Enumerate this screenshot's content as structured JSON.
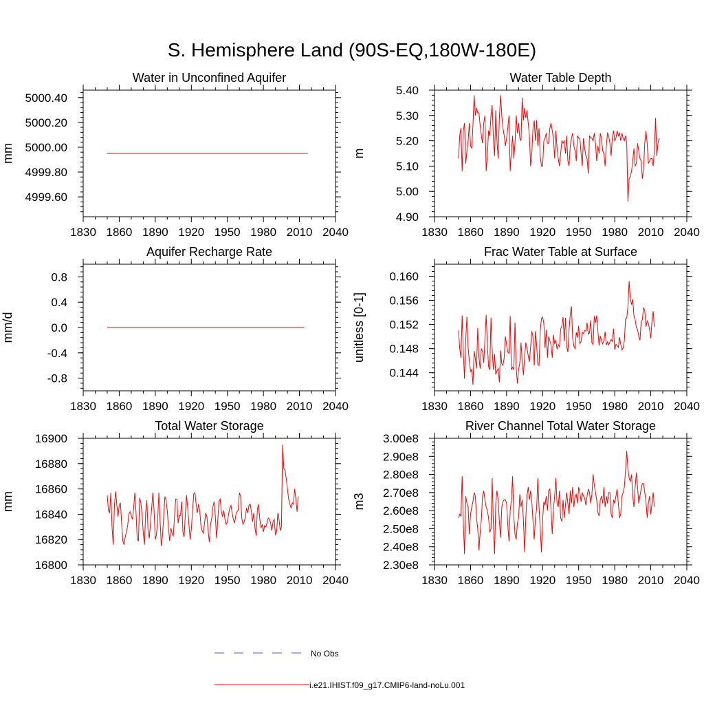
{
  "page": {
    "title": "S. Hemisphere Land (90S-EQ,180W-180E)"
  },
  "legend": {
    "obs_label": "No Obs",
    "model_label": "i.e21.IHIST.f09_g17.CMIP6-land-noLu.001",
    "obs_color": "#4b57c8",
    "model_color": "#ff0000"
  },
  "chart_data": [
    {
      "id": "aquifer",
      "type": "line",
      "title": "Water in Unconfined Aquifer",
      "ylabel": "mm",
      "xlim": [
        1830,
        2040
      ],
      "ylim": [
        4999.44,
        5000.46
      ],
      "xticks": [
        1830,
        1860,
        1890,
        1920,
        1950,
        1980,
        2010,
        2040
      ],
      "yticks": [
        4999.6,
        4999.8,
        5000.0,
        5000.2,
        5000.4
      ],
      "ytick_labels": [
        "4999.60",
        "4999.80",
        "5000.00",
        "5000.20",
        "5000.40"
      ],
      "x_start": 1850,
      "values": [
        4999.95,
        4999.95,
        4999.95,
        4999.95,
        4999.95,
        4999.95,
        4999.95,
        4999.95,
        4999.95,
        4999.95,
        4999.95,
        4999.95,
        4999.95,
        4999.95,
        4999.95,
        4999.95,
        4999.95,
        4999.95,
        4999.95,
        4999.95,
        4999.95,
        4999.95,
        4999.95,
        4999.95,
        4999.95,
        4999.95,
        4999.95,
        4999.95,
        4999.95,
        4999.95,
        4999.95,
        4999.95,
        4999.95,
        4999.95,
        4999.95,
        4999.95,
        4999.95,
        4999.95,
        4999.95,
        4999.95,
        4999.95,
        4999.95,
        4999.95,
        4999.95,
        4999.95,
        4999.95,
        4999.95,
        4999.95,
        4999.95,
        4999.95,
        4999.95,
        4999.95,
        4999.95,
        4999.95,
        4999.95,
        4999.95,
        4999.95,
        4999.95,
        4999.95,
        4999.95,
        4999.95,
        4999.95,
        4999.95,
        4999.95,
        4999.95,
        4999.95,
        4999.95,
        4999.95,
        4999.95,
        4999.95,
        4999.95,
        4999.95,
        4999.95,
        4999.95,
        4999.95,
        4999.95,
        4999.95,
        4999.95,
        4999.95,
        4999.95,
        4999.95,
        4999.95,
        4999.95,
        4999.95,
        4999.95,
        4999.95,
        4999.95,
        4999.95,
        4999.95,
        4999.95,
        4999.95,
        4999.95,
        4999.95,
        4999.95,
        4999.95,
        4999.95,
        4999.95,
        4999.95,
        4999.95,
        4999.95,
        4999.95,
        4999.95,
        4999.95,
        4999.95,
        4999.95,
        4999.95,
        4999.95,
        4999.95,
        4999.95,
        4999.95,
        4999.95,
        4999.95,
        4999.95,
        4999.95,
        4999.95,
        4999.95,
        4999.95,
        4999.95,
        4999.95,
        4999.95,
        4999.95,
        4999.95,
        4999.95,
        4999.95,
        4999.95,
        4999.95,
        4999.95,
        4999.95,
        4999.95,
        4999.95,
        4999.95,
        4999.95,
        4999.95,
        4999.95,
        4999.95,
        4999.95,
        4999.95,
        4999.95,
        4999.95,
        4999.95,
        4999.95,
        4999.95,
        4999.95,
        4999.95,
        4999.95,
        4999.95,
        4999.95,
        4999.95,
        4999.95,
        4999.95,
        4999.95,
        4999.95,
        4999.95,
        4999.95,
        4999.95,
        4999.95,
        4999.95,
        4999.95,
        4999.95,
        4999.95,
        4999.95,
        4999.95,
        4999.95,
        4999.95,
        4999.95,
        4999.95,
        4999.95,
        4999.95
      ]
    },
    {
      "id": "wtd",
      "type": "line",
      "title": "Water Table Depth",
      "ylabel": "m",
      "xlim": [
        1830,
        2040
      ],
      "ylim": [
        4.9,
        5.4
      ],
      "xticks": [
        1830,
        1860,
        1890,
        1920,
        1950,
        1980,
        2010,
        2040
      ],
      "yticks": [
        4.9,
        5.0,
        5.1,
        5.2,
        5.3,
        5.4
      ],
      "ytick_labels": [
        "4.90",
        "5.00",
        "5.10",
        "5.20",
        "5.30",
        "5.40"
      ],
      "x_start": 1850,
      "values": [
        5.13,
        5.22,
        5.25,
        5.08,
        5.24,
        5.27,
        5.11,
        5.16,
        5.2,
        5.27,
        5.18,
        5.17,
        5.26,
        5.38,
        5.3,
        5.33,
        5.31,
        5.31,
        5.26,
        5.22,
        5.19,
        5.27,
        5.3,
        5.08,
        5.14,
        5.24,
        5.22,
        5.3,
        5.34,
        5.21,
        5.14,
        5.32,
        5.2,
        5.13,
        5.29,
        5.38,
        5.3,
        5.25,
        5.22,
        5.18,
        5.21,
        5.25,
        5.3,
        5.08,
        5.16,
        5.22,
        5.13,
        5.19,
        5.3,
        5.23,
        5.27,
        5.21,
        5.2,
        5.37,
        5.28,
        5.33,
        5.29,
        5.32,
        5.27,
        5.22,
        5.1,
        5.15,
        5.25,
        5.28,
        5.2,
        5.28,
        5.18,
        5.25,
        5.14,
        5.1,
        5.1,
        5.2,
        5.21,
        5.23,
        5.19,
        5.19,
        5.25,
        5.27,
        5.24,
        5.21,
        5.13,
        5.24,
        5.17,
        5.13,
        5.1,
        5.15,
        5.2,
        5.19,
        5.2,
        5.15,
        5.22,
        5.12,
        5.1,
        5.18,
        5.21,
        5.23,
        5.18,
        5.16,
        5.12,
        5.22,
        5.21,
        5.21,
        5.15,
        5.1,
        5.21,
        5.17,
        5.14,
        5.13,
        5.07,
        5.22,
        5.21,
        5.21,
        5.2,
        5.23,
        5.19,
        5.12,
        5.18,
        5.15,
        5.23,
        5.21,
        5.16,
        5.15,
        5.1,
        5.18,
        5.23,
        5.22,
        5.19,
        5.14,
        5.21,
        5.24,
        5.2,
        5.21,
        5.24,
        5.22,
        5.23,
        5.2,
        5.23,
        5.21,
        5.2,
        5.22,
        5.19,
        4.96,
        5.05,
        5.06,
        5.08,
        5.12,
        5.17,
        5.1,
        5.11,
        5.19,
        5.16,
        5.13,
        5.12,
        5.05,
        5.09,
        5.19,
        5.24,
        5.19,
        5.11,
        5.12,
        5.13,
        5.13,
        5.1,
        5.16,
        5.29,
        5.14,
        5.19,
        5.21
      ]
    },
    {
      "id": "recharge",
      "type": "line",
      "title": "Aquifer Recharge Rate",
      "ylabel": "mm/d",
      "xlim": [
        1830,
        2040
      ],
      "ylim": [
        -1.0,
        1.0
      ],
      "xticks": [
        1830,
        1860,
        1890,
        1920,
        1950,
        1980,
        2010,
        2040
      ],
      "yticks": [
        -0.8,
        -0.4,
        0.0,
        0.4,
        0.8
      ],
      "ytick_labels": [
        "-0.8",
        "-0.4",
        "0.0",
        "0.4",
        "0.8"
      ],
      "x_start": 1850,
      "values": [
        0.0,
        0.0,
        0.0,
        0.0,
        0.0,
        0.0,
        0.0,
        0.0,
        0.0,
        0.0,
        0.0,
        0.0,
        0.0,
        0.0,
        0.0,
        0.0,
        0.0,
        0.0,
        0.0,
        0.0,
        0.0,
        0.0,
        0.0,
        0.0,
        0.0,
        0.0,
        0.0,
        0.0,
        0.0,
        0.0,
        0.0,
        0.0,
        0.0,
        0.0,
        0.0,
        0.0,
        0.0,
        0.0,
        0.0,
        0.0,
        0.0,
        0.0,
        0.0,
        0.0,
        0.0,
        0.0,
        0.0,
        0.0,
        0.0,
        0.0,
        0.0,
        0.0,
        0.0,
        0.0,
        0.0,
        0.0,
        0.0,
        0.0,
        0.0,
        0.0,
        0.0,
        0.0,
        0.0,
        0.0,
        0.0,
        0.0,
        0.0,
        0.0,
        0.0,
        0.0,
        0.0,
        0.0,
        0.0,
        0.0,
        0.0,
        0.0,
        0.0,
        0.0,
        0.0,
        0.0,
        0.0,
        0.0,
        0.0,
        0.0,
        0.0,
        0.0,
        0.0,
        0.0,
        0.0,
        0.0,
        0.0,
        0.0,
        0.0,
        0.0,
        0.0,
        0.0,
        0.0,
        0.0,
        0.0,
        0.0,
        0.0,
        0.0,
        0.0,
        0.0,
        0.0,
        0.0,
        0.0,
        0.0,
        0.0,
        0.0,
        0.0,
        0.0,
        0.0,
        0.0,
        0.0,
        0.0,
        0.0,
        0.0,
        0.0,
        0.0,
        0.0,
        0.0,
        0.0,
        0.0,
        0.0,
        0.0,
        0.0,
        0.0,
        0.0,
        0.0,
        0.0,
        0.0,
        0.0,
        0.0,
        0.0,
        0.0,
        0.0,
        0.0,
        0.0,
        0.0,
        0.0,
        0.0,
        0.0,
        0.0,
        0.0,
        0.0,
        0.0,
        0.0,
        0.0,
        0.0,
        0.0,
        0.0,
        0.0,
        0.0,
        0.0,
        0.0,
        0.0,
        0.0,
        0.0,
        0.0,
        0.0,
        0.0,
        0.0,
        0.0,
        0.0
      ]
    },
    {
      "id": "fwt",
      "type": "line",
      "title": "Frac Water Table at Surface",
      "ylabel": "unitless [0-1]",
      "xlim": [
        1830,
        2040
      ],
      "ylim": [
        0.141,
        0.162
      ],
      "xticks": [
        1830,
        1860,
        1890,
        1920,
        1950,
        1980,
        2010,
        2040
      ],
      "yticks": [
        0.144,
        0.148,
        0.152,
        0.156,
        0.16
      ],
      "ytick_labels": [
        "0.144",
        "0.148",
        "0.152",
        "0.156",
        "0.160"
      ],
      "x_start": 1850,
      "values": [
        0.151,
        0.148,
        0.1465,
        0.1535,
        0.1473,
        0.143,
        0.1495,
        0.1533,
        0.1481,
        0.146,
        0.1442,
        0.1445,
        0.142,
        0.1476,
        0.1463,
        0.1447,
        0.1514,
        0.1465,
        0.1447,
        0.148,
        0.1475,
        0.1456,
        0.1496,
        0.1536,
        0.1487,
        0.145,
        0.1445,
        0.1531,
        0.1478,
        0.1445,
        0.1471,
        0.1437,
        0.1443,
        0.1447,
        0.1424,
        0.1477,
        0.1455,
        0.1452,
        0.1465,
        0.15,
        0.1487,
        0.1474,
        0.1472,
        0.1534,
        0.1445,
        0.1449,
        0.1445,
        0.1523,
        0.1447,
        0.1422,
        0.1445,
        0.1456,
        0.149,
        0.1459,
        0.1436,
        0.1465,
        0.149,
        0.1481,
        0.1468,
        0.1458,
        0.1483,
        0.1509,
        0.1499,
        0.1452,
        0.1509,
        0.1486,
        0.1453,
        0.1452,
        0.1509,
        0.153,
        0.1532,
        0.1522,
        0.1481,
        0.1511,
        0.1465,
        0.15,
        0.1493,
        0.1486,
        0.1465,
        0.1503,
        0.1488,
        0.1494,
        0.1479,
        0.1487,
        0.1483,
        0.1512,
        0.1518,
        0.1532,
        0.1492,
        0.1531,
        0.1484,
        0.1474,
        0.1511,
        0.1537,
        0.155,
        0.1497,
        0.1484,
        0.148,
        0.1507,
        0.1498,
        0.1518,
        0.1488,
        0.1492,
        0.1507,
        0.1505,
        0.151,
        0.1509,
        0.1523,
        0.1504,
        0.1506,
        0.1527,
        0.149,
        0.1487,
        0.1534,
        0.1523,
        0.1535,
        0.1509,
        0.1485,
        0.1501,
        0.1493,
        0.1488,
        0.1494,
        0.1508,
        0.1486,
        0.1491,
        0.1486,
        0.1491,
        0.1495,
        0.1492,
        0.1513,
        0.1478,
        0.1487,
        0.1485,
        0.1482,
        0.1499,
        0.1487,
        0.1478,
        0.1481,
        0.1493,
        0.1529,
        0.153,
        0.155,
        0.1592,
        0.1562,
        0.1553,
        0.1562,
        0.1534,
        0.1528,
        0.1515,
        0.1512,
        0.15,
        0.1494,
        0.1524,
        0.1528,
        0.1548,
        0.1543,
        0.1516,
        0.1526,
        0.1522,
        0.1512,
        0.1497,
        0.1526,
        0.1542,
        0.1516
      ]
    },
    {
      "id": "tws",
      "type": "line",
      "title": "Total Water Storage",
      "ylabel": "mm",
      "xlim": [
        1830,
        2040
      ],
      "ylim": [
        16800,
        16900
      ],
      "xticks": [
        1830,
        1860,
        1890,
        1920,
        1950,
        1980,
        2010,
        2040
      ],
      "yticks": [
        16800,
        16820,
        16840,
        16860,
        16880,
        16900
      ],
      "ytick_labels": [
        "16800",
        "16820",
        "16840",
        "16860",
        "16880",
        "16900"
      ],
      "x_start": 1850,
      "values": [
        16855,
        16843,
        16841,
        16857,
        16830,
        16816,
        16847,
        16858,
        16847,
        16838,
        16847,
        16849,
        16833,
        16819,
        16816,
        16822,
        16826,
        16831,
        16840,
        16842,
        16839,
        16836,
        16845,
        16857,
        16841,
        16820,
        16819,
        16853,
        16849,
        16840,
        16825,
        16816,
        16841,
        16851,
        16827,
        16821,
        16833,
        16845,
        16857,
        16843,
        16820,
        16824,
        16836,
        16857,
        16835,
        16815,
        16823,
        16838,
        16854,
        16851,
        16843,
        16829,
        16819,
        16829,
        16825,
        16823,
        16838,
        16852,
        16852,
        16833,
        16839,
        16839,
        16850,
        16826,
        16822,
        16840,
        16855,
        16845,
        16832,
        16820,
        16828,
        16842,
        16856,
        16857,
        16848,
        16841,
        16848,
        16843,
        16831,
        16827,
        16825,
        16833,
        16841,
        16838,
        16827,
        16818,
        16832,
        16837,
        16846,
        16850,
        16838,
        16821,
        16835,
        16850,
        16852,
        16842,
        16838,
        16843,
        16836,
        16832,
        16834,
        16840,
        16845,
        16847,
        16841,
        16836,
        16833,
        16839,
        16842,
        16843,
        16857,
        16854,
        16837,
        16832,
        16834,
        16838,
        16845,
        16841,
        16847,
        16848,
        16842,
        16834,
        16841,
        16829,
        16823,
        16844,
        16848,
        16836,
        16829,
        16832,
        16826,
        16831,
        16830,
        16833,
        16837,
        16836,
        16833,
        16827,
        16834,
        16836,
        16824,
        16826,
        16841,
        16836,
        16827,
        16830,
        16895,
        16876,
        16875,
        16868,
        16860,
        16852,
        16848,
        16845,
        16849,
        16848,
        16860,
        16852,
        16842,
        16854
      ]
    },
    {
      "id": "river",
      "type": "line",
      "title": "River Channel Total Water Storage",
      "ylabel": "m3",
      "xlim": [
        1830,
        2040
      ],
      "ylim": [
        230000000,
        300000000
      ],
      "xticks": [
        1830,
        1860,
        1890,
        1920,
        1950,
        1980,
        2010,
        2040
      ],
      "yticks": [
        230000000,
        240000000,
        250000000,
        260000000,
        270000000,
        280000000,
        290000000,
        300000000
      ],
      "ytick_labels": [
        "2.30e8",
        "2.40e8",
        "2.50e8",
        "2.60e8",
        "2.70e8",
        "2.80e8",
        "2.90e8",
        "3.00e8"
      ],
      "x_start": 1850,
      "values": [
        256000000,
        258000000,
        257000000,
        279000000,
        253000000,
        236000000,
        268000000,
        264000000,
        262000000,
        247000000,
        258000000,
        262000000,
        265000000,
        270000000,
        268000000,
        256000000,
        250000000,
        238000000,
        248000000,
        255000000,
        268000000,
        271000000,
        266000000,
        262000000,
        260000000,
        256000000,
        248000000,
        250000000,
        278000000,
        253000000,
        236000000,
        264000000,
        271000000,
        266000000,
        254000000,
        245000000,
        262000000,
        265000000,
        266000000,
        266000000,
        264000000,
        252000000,
        243000000,
        260000000,
        266000000,
        279000000,
        257000000,
        247000000,
        244000000,
        253000000,
        256000000,
        269000000,
        262000000,
        266000000,
        255000000,
        237000000,
        256000000,
        268000000,
        273000000,
        266000000,
        271000000,
        265000000,
        254000000,
        244000000,
        256000000,
        261000000,
        278000000,
        262000000,
        250000000,
        237000000,
        255000000,
        265000000,
        263000000,
        268000000,
        260000000,
        271000000,
        272000000,
        260000000,
        247000000,
        261000000,
        268000000,
        278000000,
        264000000,
        262000000,
        271000000,
        256000000,
        254000000,
        266000000,
        256000000,
        263000000,
        270000000,
        264000000,
        258000000,
        271000000,
        264000000,
        273000000,
        262000000,
        268000000,
        269000000,
        264000000,
        273000000,
        270000000,
        265000000,
        270000000,
        268000000,
        267000000,
        263000000,
        268000000,
        272000000,
        270000000,
        264000000,
        269000000,
        280000000,
        274000000,
        270000000,
        266000000,
        259000000,
        257000000,
        266000000,
        268000000,
        264000000,
        273000000,
        262000000,
        268000000,
        264000000,
        270000000,
        270000000,
        258000000,
        256000000,
        266000000,
        264000000,
        268000000,
        272000000,
        264000000,
        256000000,
        258000000,
        268000000,
        270000000,
        273000000,
        282000000,
        293000000,
        283000000,
        278000000,
        276000000,
        280000000,
        268000000,
        262000000,
        273000000,
        281000000,
        273000000,
        264000000,
        268000000,
        272000000,
        275000000,
        275000000,
        270000000,
        265000000,
        256000000,
        264000000,
        268000000,
        258000000,
        264000000,
        270000000,
        262000000
      ]
    }
  ]
}
